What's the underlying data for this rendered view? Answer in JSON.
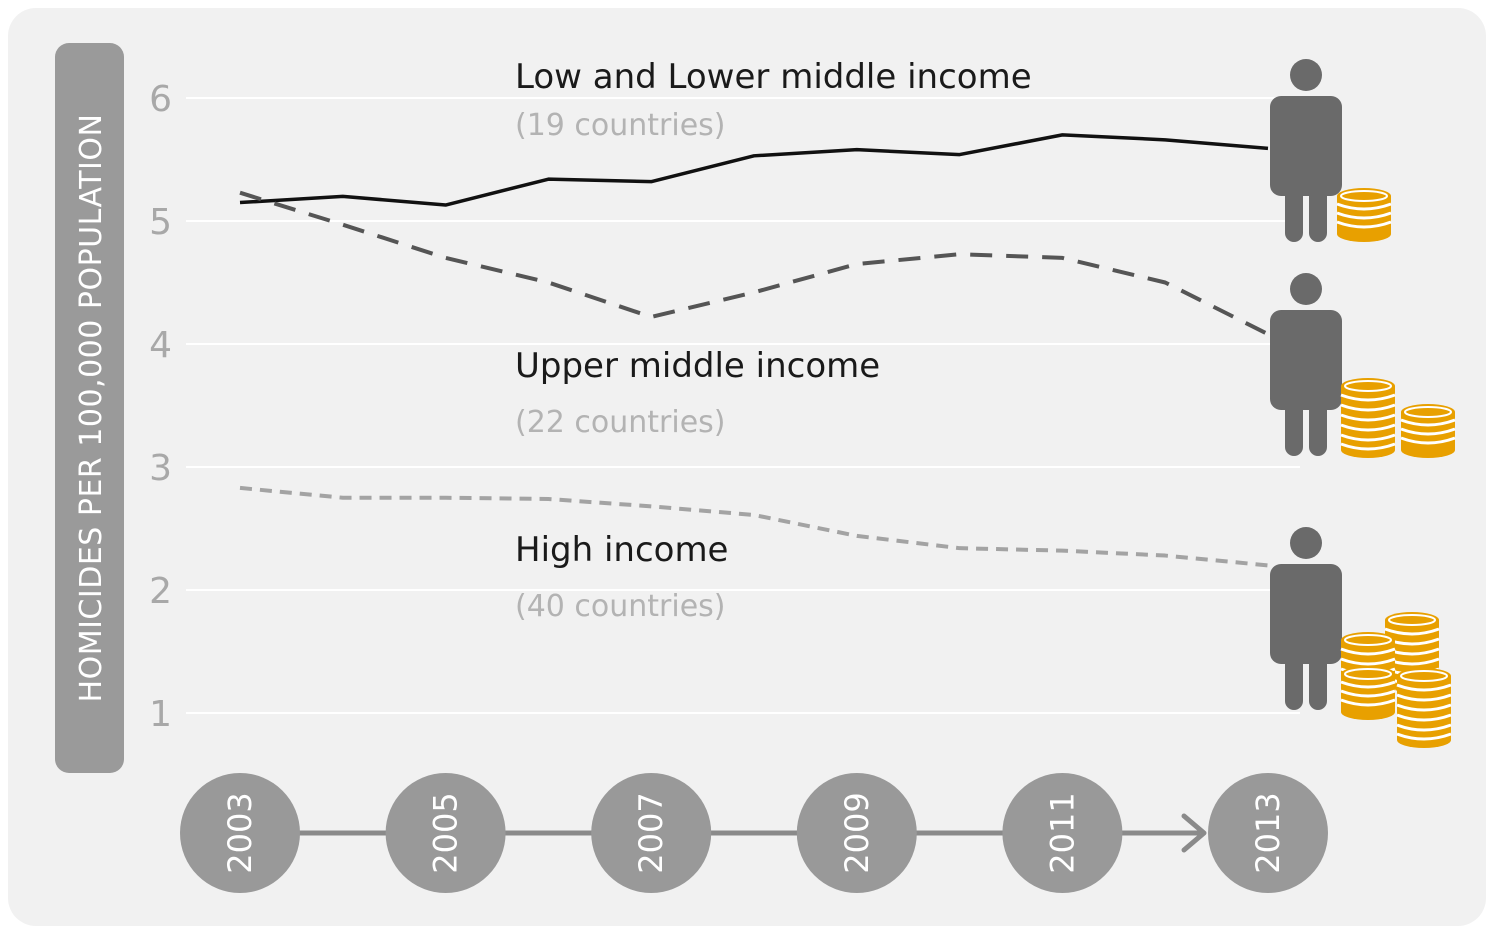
{
  "chart_data": {
    "type": "line",
    "ylabel": "HOMICIDES PER 100,000  POPULATION",
    "ylim": [
      1,
      6
    ],
    "y_ticks": [
      "1",
      "2",
      "3",
      "4",
      "5",
      "6"
    ],
    "grid": true,
    "x": [
      2003,
      2004,
      2005,
      2006,
      2007,
      2008,
      2009,
      2010,
      2011,
      2012,
      2013
    ],
    "x_tick_labels": [
      "2003",
      "2005",
      "2007",
      "2009",
      "2011",
      "2013"
    ],
    "series": [
      {
        "name": "Low and Lower middle income",
        "note": "(19 countries)",
        "style": "solid",
        "color": "#111111",
        "values": [
          5.15,
          5.2,
          5.13,
          5.34,
          5.32,
          5.53,
          5.58,
          5.54,
          5.7,
          5.66,
          5.59
        ]
      },
      {
        "name": "Upper middle income",
        "note": "(22 countries)",
        "style": "dashed",
        "color": "#555555",
        "values": [
          5.23,
          4.97,
          4.7,
          4.5,
          4.22,
          4.42,
          4.65,
          4.73,
          4.7,
          4.5,
          4.08
        ]
      },
      {
        "name": "High income",
        "note": "(40 countries)",
        "style": "dotted",
        "color": "#a3a3a3",
        "values": [
          2.83,
          2.75,
          2.75,
          2.74,
          2.68,
          2.61,
          2.44,
          2.34,
          2.32,
          2.28,
          2.2
        ]
      }
    ]
  },
  "icons": {
    "person": "person-icon",
    "coins": "coin-stack-icon",
    "timeline_arrow": "arrow-right-icon"
  },
  "colors": {
    "background": "#f1f1f1",
    "axis_box": "#9a9a9a",
    "person": "#6a6a6a",
    "year_circle": "#999999",
    "timeline": "#8a8a8a",
    "coin": "#e8a000",
    "gridline": "#ffffff"
  }
}
